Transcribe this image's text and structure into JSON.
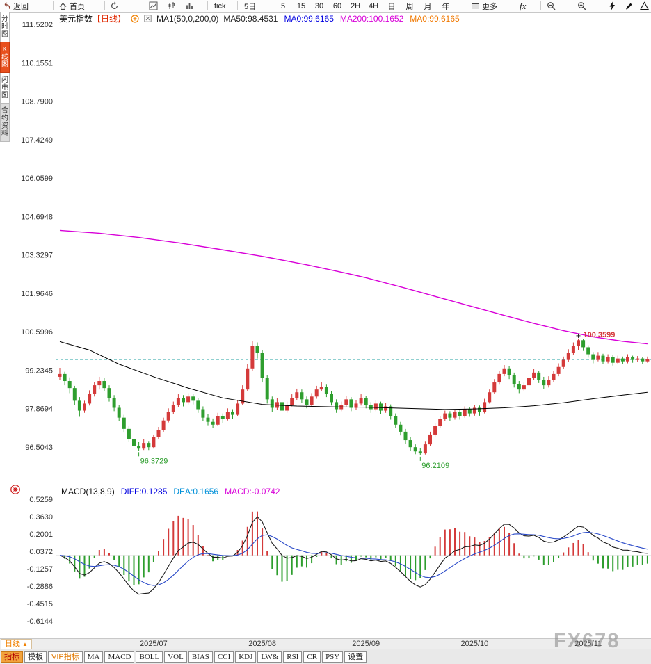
{
  "toolbar": {
    "back_label": "返回",
    "home_label": "首页",
    "tick_label": "tick",
    "five_day_label": "5日",
    "periods": [
      "5",
      "15",
      "30",
      "60",
      "2H",
      "4H",
      "日",
      "周",
      "月",
      "年"
    ],
    "more_label": "更多",
    "fx_label": "fx"
  },
  "sidebar": {
    "items": [
      {
        "id": "time-share",
        "label": "分时图",
        "active": false,
        "variant": "plain"
      },
      {
        "id": "kline",
        "label": "K线图",
        "active": true,
        "variant": "plain"
      },
      {
        "id": "flash",
        "label": "闪电图",
        "active": false,
        "variant": "plain"
      },
      {
        "id": "contract-info",
        "label": "合约资料",
        "active": false,
        "variant": "gray"
      }
    ]
  },
  "chart_header": {
    "symbol": "美元指数",
    "period_tag": "【日线】",
    "ma_settings": "MA1(50,0,200,0)",
    "items": [
      {
        "text": "MA50:98.4531",
        "color": "#222222"
      },
      {
        "text": "MA0:99.6165",
        "color": "#0000e0"
      },
      {
        "text": "MA200:100.1652",
        "color": "#d800d8"
      },
      {
        "text": "MA0:99.6165",
        "color": "#f07800"
      }
    ]
  },
  "macd_header": {
    "name": "MACD(13,8,9)",
    "items": [
      {
        "text": "DIFF:0.1285",
        "color": "#0000e0"
      },
      {
        "text": "DEA:0.1656",
        "color": "#0090d8"
      },
      {
        "text": "MACD:-0.0742",
        "color": "#d800d8"
      }
    ]
  },
  "bottom_bar": {
    "period_label": "日线",
    "period_arrow": "▲",
    "tabs": [
      {
        "name": "tab-indicator",
        "label": "指标",
        "style": "active"
      },
      {
        "name": "tab-template",
        "label": "模板",
        "style": "normal"
      },
      {
        "name": "tab-vip-indicator",
        "label": "VIP指标",
        "style": "vip"
      },
      {
        "name": "tab-ma",
        "label": "MA",
        "style": "en"
      },
      {
        "name": "tab-macd",
        "label": "MACD",
        "style": "en"
      },
      {
        "name": "tab-boll",
        "label": "BOLL",
        "style": "en"
      },
      {
        "name": "tab-vol",
        "label": "VOL",
        "style": "en"
      },
      {
        "name": "tab-bias",
        "label": "BIAS",
        "style": "en"
      },
      {
        "name": "tab-cci",
        "label": "CCI",
        "style": "en"
      },
      {
        "name": "tab-kdj",
        "label": "KDJ",
        "style": "en"
      },
      {
        "name": "tab-lw",
        "label": "LW&",
        "style": "en"
      },
      {
        "name": "tab-rsi",
        "label": "RSI",
        "style": "en"
      },
      {
        "name": "tab-cr",
        "label": "CR",
        "style": "en"
      },
      {
        "name": "tab-psy",
        "label": "PSY",
        "style": "en"
      },
      {
        "name": "tab-settings",
        "label": "设置",
        "style": "normal"
      }
    ]
  },
  "watermark": "FX678",
  "chart_data": {
    "type": "candlestick+macd",
    "title": "美元指数 日线",
    "colors": {
      "up": "#d43a3a",
      "down": "#2e9e2e",
      "ma50": "#000000",
      "ma200": "#d800d8",
      "last_price_line": "#1fa0a0",
      "macd_diff": "#1a1a1a",
      "macd_dea": "#2848c8",
      "axis_text": "#333333"
    },
    "y_axis_main": [
      111.5202,
      110.1551,
      108.79,
      107.4249,
      106.0599,
      104.6948,
      103.3297,
      101.9646,
      100.5996,
      99.2345,
      97.8694,
      96.5043
    ],
    "y_axis_macd": [
      0.5259,
      0.363,
      0.2001,
      0.0372,
      -0.1257,
      -0.2886,
      -0.4515,
      -0.6144
    ],
    "x_ticks": [
      {
        "index": 19,
        "label": "2025/07"
      },
      {
        "index": 41,
        "label": "2025/08"
      },
      {
        "index": 62,
        "label": "2025/09"
      },
      {
        "index": 84,
        "label": "2025/10"
      },
      {
        "index": 107,
        "label": "2025/11"
      }
    ],
    "last_price": 99.6165,
    "macd_params": {
      "short": 8,
      "long": 13,
      "signal": 9
    },
    "annotations": [
      {
        "index": 16,
        "price": 96.3729,
        "text": "96.3729",
        "type": "low"
      },
      {
        "index": 73,
        "price": 96.2109,
        "text": "96.2109",
        "type": "low"
      },
      {
        "index": 105,
        "price": 100.3599,
        "text": "100.3599",
        "type": "high"
      }
    ],
    "ma50": [
      [
        0,
        100.25
      ],
      [
        6,
        99.95
      ],
      [
        12,
        99.45
      ],
      [
        19,
        99.0
      ],
      [
        26,
        98.6
      ],
      [
        33,
        98.25
      ],
      [
        41,
        98.02
      ],
      [
        48,
        97.96
      ],
      [
        56,
        97.93
      ],
      [
        62,
        97.92
      ],
      [
        70,
        97.88
      ],
      [
        78,
        97.84
      ],
      [
        84,
        97.86
      ],
      [
        90,
        97.9
      ],
      [
        96,
        97.97
      ],
      [
        102,
        98.08
      ],
      [
        108,
        98.22
      ],
      [
        114,
        98.35
      ],
      [
        119,
        98.45
      ]
    ],
    "ma200": [
      [
        0,
        104.2
      ],
      [
        8,
        104.1
      ],
      [
        16,
        103.95
      ],
      [
        24,
        103.76
      ],
      [
        32,
        103.54
      ],
      [
        41,
        103.28
      ],
      [
        50,
        102.98
      ],
      [
        58,
        102.68
      ],
      [
        62,
        102.52
      ],
      [
        70,
        102.15
      ],
      [
        78,
        101.76
      ],
      [
        84,
        101.47
      ],
      [
        90,
        101.18
      ],
      [
        96,
        100.9
      ],
      [
        102,
        100.64
      ],
      [
        108,
        100.42
      ],
      [
        114,
        100.26
      ],
      [
        119,
        100.17
      ]
    ],
    "candles": [
      [
        99.0,
        99.32,
        98.88,
        99.1
      ],
      [
        99.1,
        99.18,
        98.7,
        98.85
      ],
      [
        98.85,
        98.98,
        98.42,
        98.6
      ],
      [
        98.6,
        98.68,
        98.0,
        98.15
      ],
      [
        98.15,
        98.28,
        97.58,
        97.8
      ],
      [
        97.8,
        98.15,
        97.72,
        98.05
      ],
      [
        98.05,
        98.52,
        97.98,
        98.4
      ],
      [
        98.4,
        98.82,
        98.3,
        98.7
      ],
      [
        98.7,
        99.0,
        98.55,
        98.85
      ],
      [
        98.85,
        98.95,
        98.48,
        98.6
      ],
      [
        98.6,
        98.7,
        98.12,
        98.25
      ],
      [
        98.25,
        98.35,
        97.78,
        97.9
      ],
      [
        97.9,
        98.0,
        97.42,
        97.55
      ],
      [
        97.55,
        97.65,
        97.02,
        97.15
      ],
      [
        97.15,
        97.25,
        96.68,
        96.8
      ],
      [
        96.8,
        96.92,
        96.42,
        96.55
      ],
      [
        96.55,
        96.68,
        96.3729,
        96.45
      ],
      [
        96.45,
        96.8,
        96.4,
        96.65
      ],
      [
        96.65,
        96.72,
        96.4,
        96.5
      ],
      [
        96.5,
        96.95,
        96.45,
        96.85
      ],
      [
        96.85,
        97.22,
        96.78,
        97.1
      ],
      [
        97.1,
        97.55,
        97.05,
        97.45
      ],
      [
        97.45,
        97.88,
        97.38,
        97.75
      ],
      [
        97.75,
        98.12,
        97.68,
        98.0
      ],
      [
        98.0,
        98.38,
        97.92,
        98.25
      ],
      [
        98.25,
        98.35,
        97.95,
        98.1
      ],
      [
        98.1,
        98.42,
        98.02,
        98.3
      ],
      [
        98.3,
        98.4,
        98.02,
        98.15
      ],
      [
        98.15,
        98.25,
        97.72,
        97.85
      ],
      [
        97.85,
        97.95,
        97.42,
        97.55
      ],
      [
        97.55,
        97.68,
        97.28,
        97.4
      ],
      [
        97.4,
        97.52,
        97.18,
        97.3
      ],
      [
        97.3,
        97.72,
        97.25,
        97.6
      ],
      [
        97.6,
        97.7,
        97.35,
        97.5
      ],
      [
        97.5,
        97.88,
        97.45,
        97.75
      ],
      [
        97.75,
        97.85,
        97.5,
        97.65
      ],
      [
        97.65,
        98.18,
        97.6,
        98.05
      ],
      [
        98.05,
        98.7,
        98.0,
        98.55
      ],
      [
        98.55,
        99.45,
        98.5,
        99.3
      ],
      [
        99.3,
        100.26,
        99.22,
        100.1
      ],
      [
        100.1,
        100.22,
        99.65,
        99.85
      ],
      [
        99.85,
        99.95,
        98.8,
        98.95
      ],
      [
        98.95,
        99.05,
        98.05,
        98.2
      ],
      [
        98.2,
        98.3,
        97.75,
        97.9
      ],
      [
        97.9,
        98.25,
        97.82,
        98.1
      ],
      [
        98.1,
        98.18,
        97.65,
        97.8
      ],
      [
        97.8,
        98.12,
        97.72,
        98.0
      ],
      [
        98.0,
        98.38,
        97.95,
        98.25
      ],
      [
        98.25,
        98.58,
        98.18,
        98.45
      ],
      [
        98.45,
        98.55,
        98.08,
        98.2
      ],
      [
        98.2,
        98.3,
        97.88,
        98.0
      ],
      [
        98.0,
        98.42,
        97.95,
        98.3
      ],
      [
        98.3,
        98.68,
        98.22,
        98.55
      ],
      [
        98.55,
        98.8,
        98.48,
        98.65
      ],
      [
        98.65,
        98.72,
        98.28,
        98.4
      ],
      [
        98.4,
        98.5,
        97.98,
        98.1
      ],
      [
        98.1,
        98.2,
        97.72,
        97.85
      ],
      [
        97.85,
        98.12,
        97.78,
        98.0
      ],
      [
        98.0,
        98.32,
        97.92,
        98.2
      ],
      [
        98.2,
        98.28,
        97.78,
        97.9
      ],
      [
        97.9,
        98.18,
        97.82,
        98.05
      ],
      [
        98.05,
        98.38,
        97.98,
        98.25
      ],
      [
        98.25,
        98.32,
        97.88,
        98.0
      ],
      [
        98.0,
        98.1,
        97.72,
        97.85
      ],
      [
        97.85,
        98.18,
        97.78,
        98.05
      ],
      [
        98.05,
        98.12,
        97.68,
        97.8
      ],
      [
        97.8,
        98.08,
        97.72,
        97.95
      ],
      [
        97.95,
        98.02,
        97.48,
        97.6
      ],
      [
        97.6,
        97.7,
        97.18,
        97.3
      ],
      [
        97.3,
        97.4,
        96.92,
        97.05
      ],
      [
        97.05,
        97.15,
        96.62,
        96.75
      ],
      [
        96.75,
        96.85,
        96.38,
        96.5
      ],
      [
        96.5,
        96.6,
        96.25,
        96.35
      ],
      [
        96.35,
        96.48,
        96.2109,
        96.28
      ],
      [
        96.28,
        96.72,
        96.24,
        96.6
      ],
      [
        96.6,
        97.05,
        96.55,
        96.95
      ],
      [
        96.95,
        97.35,
        96.88,
        97.25
      ],
      [
        97.25,
        97.6,
        97.18,
        97.5
      ],
      [
        97.5,
        97.8,
        97.42,
        97.7
      ],
      [
        97.7,
        97.78,
        97.42,
        97.55
      ],
      [
        97.55,
        97.85,
        97.48,
        97.75
      ],
      [
        97.75,
        97.82,
        97.48,
        97.6
      ],
      [
        97.6,
        97.95,
        97.55,
        97.85
      ],
      [
        97.85,
        97.92,
        97.58,
        97.7
      ],
      [
        97.7,
        98.0,
        97.62,
        97.9
      ],
      [
        97.9,
        97.98,
        97.62,
        97.75
      ],
      [
        97.75,
        98.22,
        97.7,
        98.1
      ],
      [
        98.1,
        98.55,
        98.05,
        98.45
      ],
      [
        98.45,
        98.92,
        98.4,
        98.8
      ],
      [
        98.8,
        99.22,
        98.72,
        99.1
      ],
      [
        99.1,
        99.42,
        99.02,
        99.3
      ],
      [
        99.3,
        99.38,
        98.92,
        99.05
      ],
      [
        99.05,
        99.15,
        98.62,
        98.75
      ],
      [
        98.75,
        98.85,
        98.42,
        98.55
      ],
      [
        98.55,
        98.82,
        98.48,
        98.7
      ],
      [
        98.7,
        99.08,
        98.62,
        98.95
      ],
      [
        98.95,
        99.28,
        98.88,
        99.15
      ],
      [
        99.15,
        99.22,
        98.78,
        98.9
      ],
      [
        98.9,
        99.0,
        98.58,
        98.7
      ],
      [
        98.7,
        99.02,
        98.62,
        98.9
      ],
      [
        98.9,
        99.22,
        98.82,
        99.1
      ],
      [
        99.1,
        99.48,
        99.02,
        99.35
      ],
      [
        99.35,
        99.72,
        99.28,
        99.6
      ],
      [
        99.6,
        99.98,
        99.52,
        99.85
      ],
      [
        99.85,
        100.22,
        99.78,
        100.1
      ],
      [
        100.1,
        100.3599,
        99.95,
        100.3
      ],
      [
        100.3,
        100.35,
        99.92,
        100.05
      ],
      [
        100.05,
        100.12,
        99.68,
        99.8
      ],
      [
        99.8,
        99.88,
        99.48,
        99.6
      ],
      [
        99.6,
        99.88,
        99.55,
        99.75
      ],
      [
        99.75,
        99.82,
        99.45,
        99.55
      ],
      [
        99.55,
        99.8,
        99.48,
        99.7
      ],
      [
        99.7,
        99.78,
        99.4,
        99.5
      ],
      [
        99.5,
        99.75,
        99.45,
        99.65
      ],
      [
        99.65,
        99.72,
        99.45,
        99.55
      ],
      [
        99.55,
        99.8,
        99.48,
        99.7
      ],
      [
        99.7,
        99.75,
        99.5,
        99.6
      ],
      [
        99.6,
        99.74,
        99.52,
        99.65
      ],
      [
        99.65,
        99.7,
        99.45,
        99.55
      ],
      [
        99.55,
        99.72,
        99.5,
        99.62
      ]
    ]
  }
}
